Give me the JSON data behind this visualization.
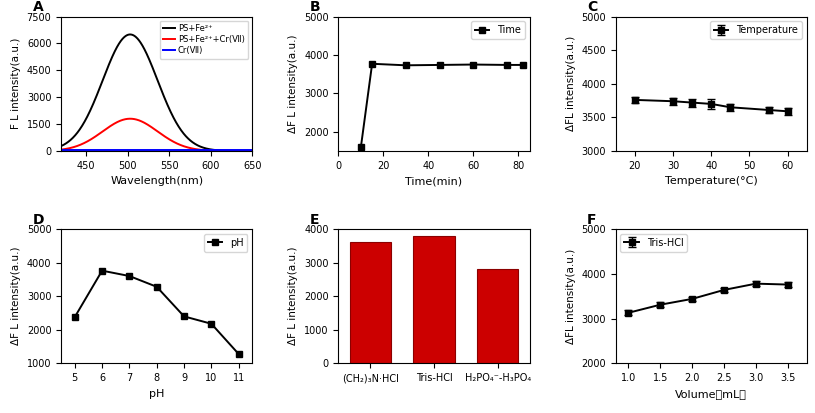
{
  "panel_A": {
    "xlabel": "Wavelength(nm)",
    "ylabel": "F L intensity(a.u.)",
    "xlim": [
      420,
      650
    ],
    "ylim": [
      0,
      7500
    ],
    "yticks": [
      0,
      1500,
      3000,
      4500,
      6000,
      7500
    ],
    "xticks": [
      450,
      500,
      550,
      600,
      650
    ],
    "xticklabels": [
      "450",
      "500",
      "550",
      "600",
      "650"
    ],
    "legend": [
      "PS+Fe²⁺",
      "PS+Fe²⁺+Cr(Ⅶ)",
      "Cr(Ⅶ)"
    ],
    "peak_wavelength": 503,
    "black_peak": 6500,
    "red_peak": 1800,
    "blue_flat": 30,
    "sigma": 33
  },
  "panel_B": {
    "xlabel": "Time(min)",
    "ylabel": "ΔF L intensity(a.u.)",
    "xlim": [
      0,
      85
    ],
    "ylim": [
      1500,
      5000
    ],
    "yticks": [
      2000,
      3000,
      4000,
      5000
    ],
    "xticks": [
      0,
      20,
      40,
      60,
      80
    ],
    "legend": "Time",
    "x": [
      10,
      15,
      30,
      45,
      60,
      75,
      82
    ],
    "y": [
      1600,
      3770,
      3730,
      3740,
      3750,
      3740,
      3740
    ]
  },
  "panel_C": {
    "xlabel": "Temperature(°C)",
    "ylabel": "ΔFL intensity(a.u.)",
    "xlim": [
      15,
      65
    ],
    "ylim": [
      3000,
      5000
    ],
    "yticks": [
      3000,
      3500,
      4000,
      4500,
      5000
    ],
    "xticks": [
      20,
      30,
      40,
      50,
      60
    ],
    "legend": "Temperature",
    "x": [
      20,
      30,
      35,
      40,
      45,
      55,
      60
    ],
    "y": [
      3760,
      3740,
      3720,
      3700,
      3650,
      3610,
      3590
    ],
    "yerr": [
      50,
      50,
      60,
      70,
      50,
      50,
      50
    ]
  },
  "panel_D": {
    "xlabel": "pH",
    "ylabel": "ΔF L intensity(a.u.)",
    "xlim": [
      4.5,
      11.5
    ],
    "ylim": [
      1000,
      5000
    ],
    "yticks": [
      1000,
      2000,
      3000,
      4000,
      5000
    ],
    "xticks": [
      5,
      6,
      7,
      8,
      9,
      10,
      11
    ],
    "xticklabels": [
      "5",
      "6",
      "7",
      "8",
      "9",
      "10",
      "11"
    ],
    "legend": "pH",
    "x": [
      5,
      6,
      7,
      8,
      9,
      10,
      11
    ],
    "y": [
      2380,
      3760,
      3600,
      3280,
      2400,
      2180,
      1280
    ]
  },
  "panel_E": {
    "ylabel": "ΔF L intensity(a.u.)",
    "xlim": [
      -0.5,
      2.5
    ],
    "ylim": [
      0,
      4000
    ],
    "yticks": [
      0,
      1000,
      2000,
      3000,
      4000
    ],
    "categories": [
      "(CH₂)₃N·HCl",
      "Tris-HCl",
      "H₂PO₄⁻-H₃PO₄"
    ],
    "values": [
      3600,
      3800,
      2800
    ],
    "bar_color": "#cc0000"
  },
  "panel_F": {
    "xlabel": "Volume（mL）",
    "ylabel": "ΔFL intensity(a.u.)",
    "xlim": [
      0.8,
      3.8
    ],
    "ylim": [
      2000,
      5000
    ],
    "yticks": [
      2000,
      3000,
      4000,
      5000
    ],
    "xticks": [
      1.0,
      1.5,
      2.0,
      2.5,
      3.0,
      3.5
    ],
    "legend": "Tris-HCl",
    "x": [
      1.0,
      1.5,
      2.0,
      2.5,
      3.0,
      3.5
    ],
    "y": [
      3130,
      3310,
      3440,
      3640,
      3780,
      3760
    ],
    "yerr": [
      60,
      50,
      50,
      50,
      50,
      50
    ]
  }
}
